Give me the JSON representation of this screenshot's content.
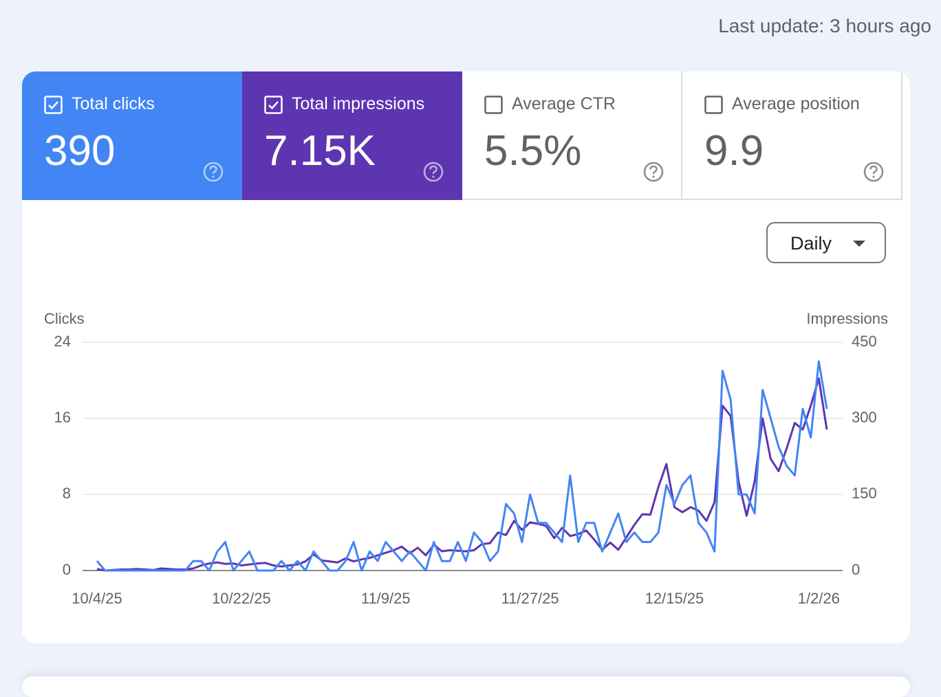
{
  "header": {
    "last_update": "Last update: 3 hours ago"
  },
  "metrics": [
    {
      "label": "Total clicks",
      "value": "390",
      "checked": true,
      "color": "#4285f4"
    },
    {
      "label": "Total impressions",
      "value": "7.15K",
      "checked": true,
      "color": "#5e35b1"
    },
    {
      "label": "Average CTR",
      "value": "5.5%",
      "checked": false,
      "color": "#ffffff"
    },
    {
      "label": "Average position",
      "value": "9.9",
      "checked": false,
      "color": "#ffffff"
    }
  ],
  "controls": {
    "period": "Daily"
  },
  "chart_data": {
    "type": "line",
    "categories": [
      "10/4/25",
      null,
      null,
      null,
      null,
      null,
      null,
      null,
      null,
      null,
      null,
      null,
      null,
      null,
      null,
      null,
      null,
      null,
      "10/22/25",
      null,
      null,
      null,
      null,
      null,
      null,
      null,
      null,
      null,
      null,
      null,
      null,
      null,
      null,
      null,
      null,
      null,
      "11/9/25",
      null,
      null,
      null,
      null,
      null,
      null,
      null,
      null,
      null,
      null,
      null,
      null,
      null,
      null,
      null,
      null,
      null,
      "11/27/25",
      null,
      null,
      null,
      null,
      null,
      null,
      null,
      null,
      null,
      null,
      null,
      null,
      null,
      null,
      null,
      null,
      null,
      "12/15/25",
      null,
      null,
      null,
      null,
      null,
      null,
      null,
      null,
      null,
      null,
      null,
      null,
      null,
      null,
      null,
      null,
      null,
      "1/2/26",
      null
    ],
    "ylim": [
      0,
      24
    ],
    "yticks": [
      0,
      8,
      16,
      24
    ],
    "y2lim": [
      0,
      450
    ],
    "y2ticks": [
      0,
      150,
      300,
      450
    ],
    "grid": true,
    "series": [
      {
        "name": "Clicks",
        "color": "#4285f4",
        "values": [
          1,
          0,
          0,
          0,
          0,
          0,
          0,
          0,
          0,
          0,
          0,
          0,
          1,
          1,
          0,
          2,
          3,
          0,
          1,
          2,
          0,
          0,
          0,
          1,
          0,
          1,
          0,
          2,
          1,
          0,
          0,
          1,
          3,
          0,
          2,
          1,
          3,
          2,
          1,
          2,
          1,
          0,
          3,
          1,
          1,
          3,
          1,
          4,
          3,
          1,
          2,
          7,
          6,
          3,
          8,
          5,
          5,
          4,
          3,
          10,
          3,
          5,
          5,
          2,
          4,
          6,
          3,
          4,
          3,
          3,
          4,
          9,
          7,
          9,
          10,
          5,
          4,
          2,
          21,
          18,
          8,
          8,
          6,
          19,
          16,
          13,
          11,
          10,
          17,
          14,
          22,
          17
        ]
      },
      {
        "name": "Impressions",
        "color": "#5e35b1",
        "axis": "y2",
        "values": [
          3,
          0,
          1,
          2,
          2,
          3,
          2,
          1,
          4,
          3,
          2,
          2,
          4,
          10,
          14,
          16,
          13,
          14,
          10,
          12,
          14,
          15,
          10,
          8,
          10,
          12,
          18,
          32,
          20,
          18,
          16,
          24,
          18,
          22,
          25,
          30,
          35,
          40,
          47,
          34,
          45,
          30,
          51,
          38,
          40,
          39,
          38,
          40,
          52,
          54,
          75,
          70,
          98,
          80,
          95,
          92,
          88,
          64,
          84,
          68,
          72,
          79,
          61,
          41,
          55,
          41,
          65,
          90,
          111,
          110,
          165,
          210,
          125,
          115,
          125,
          118,
          98,
          135,
          325,
          305,
          176,
          108,
          176,
          300,
          220,
          196,
          241,
          291,
          278,
          325,
          379,
          278
        ]
      }
    ]
  }
}
